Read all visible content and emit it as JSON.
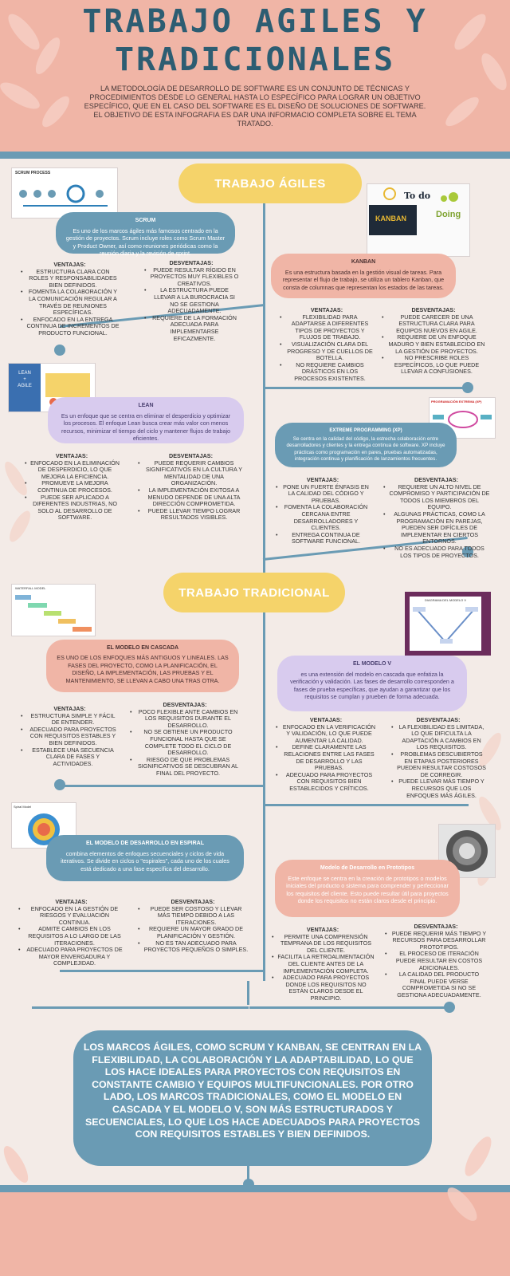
{
  "header": {
    "title_line1": "TRABAJO AGILES Y",
    "title_line2": "TRADICIONALES",
    "intro_p1": "LA METODOLOGÍA DE DESARROLLO DE SOFTWARE ES UN CONJUNTO DE TÉCNICAS Y PROCEDIMIENTOS DESDE LO GENERAL HASTA LO ESPECÍFICO PARA LOGRAR UN OBJETIVO ESPECÍFICO, QUE EN EL CASO DEL SOFTWARE ES EL DISEÑO DE SOLUCIONES DE SOFTWARE.",
    "intro_p2": "EL OBJETIVO DE ESTA INFOGRAFIA ES DAR UNA INFORMACIO COMPLETA SOBRE EL TEMA TRATADO."
  },
  "agiles": {
    "heading": "TRABAJO ÁGILES",
    "scrum": {
      "thumb_label": "SCRUM PROCESS",
      "title": "SCRUM",
      "desc": "Es uno de los marcos ágiles más famosos centrado en la gestión de proyectos. Scrum incluye roles como Scrum Master y Product Owner, así como reuniones periódicas como la reunión diaria y la revisión de sprint.",
      "pros_title": "VENTAJAS:",
      "pros": [
        "ESTRUCTURA CLARA CON ROLES Y RESPONSABILIDADES BIEN DEFINIDOS.",
        "FOMENTA LA COLABORACIÓN Y LA COMUNICACIÓN REGULAR A TRAVÉS DE REUNIONES ESPECÍFICAS.",
        "ENFOCADO EN LA ENTREGA CONTINUA DE INCREMENTOS DE PRODUCTO FUNCIONAL."
      ],
      "cons_title": "DESVENTAJAS:",
      "cons": [
        "PUEDE RESULTAR RÍGIDO EN PROYECTOS MUY FLEXIBLES O CREATIVOS.",
        "LA ESTRUCTURA PUEDE LLEVAR A LA BUROCRACIA SI NO SE GESTIONA ADECUADAMENTE.",
        "REQUIERE DE LA FORMACIÓN ADECUADA PARA IMPLEMENTARSE EFICAZMENTE."
      ]
    },
    "kanban": {
      "thumb_to_do": "To do",
      "thumb_kanban": "KANBAN",
      "thumb_doing": "Doing",
      "title": "KANBAN",
      "desc": "Es una estructura basada en la gestión visual de tareas. Para representar el flujo de trabajo, se utiliza un tablero Kanban, que consta de columnas que representan los estados de las tareas.",
      "pros_title": "VENTAJAS:",
      "pros": [
        "FLEXIBILIDAD PARA ADAPTARSE A DIFERENTES TIPOS DE PROYECTOS Y FLUJOS DE TRABAJO.",
        "VISUALIZACIÓN CLARA DEL PROGRESO Y DE CUELLOS DE BOTELLA.",
        "NO REQUIERE CAMBIOS DRÁSTICOS EN LOS PROCESOS EXISTENTES."
      ],
      "cons_title": "DESVENTAJAS:",
      "cons": [
        "PUEDE CARECER DE UNA ESTRUCTURA CLARA PARA EQUIPOS NUEVOS EN AGILE.",
        "REQUIERE DE UN ENFOQUE MADURO Y BIEN ESTABLECIDO EN LA GESTIÓN DE PROYECTOS.",
        "NO PRESCRIBE ROLES ESPECÍFICOS, LO QUE PUEDE LLEVAR A CONFUSIONES."
      ]
    },
    "lean": {
      "thumb_line1": "LEAN",
      "thumb_line2": "+",
      "thumb_line3": "AGILE",
      "title": "LEAN",
      "desc": "Es un enfoque que se centra en eliminar el desperdicio y optimizar los procesos. El enfoque Lean busca crear más valor con menos recursos, minimizar el tiempo del ciclo y mantener flujos de trabajo eficientes.",
      "pros_title": "VENTAJAS:",
      "pros": [
        "ENFOCADO EN LA ELIMINACIÓN DE DESPERDICIO, LO QUE MEJORA LA EFICIENCIA.",
        "PROMUEVE LA MEJORA CONTINUA DE PROCESOS.",
        "PUEDE SER APLICADO A DIFERENTES INDUSTRIAS, NO SOLO AL DESARROLLO DE SOFTWARE."
      ],
      "cons_title": "DESVENTAJAS:",
      "cons": [
        "PUEDE REQUERIR CAMBIOS SIGNIFICATIVOS EN LA CULTURA Y MENTALIDAD DE UNA ORGANIZACIÓN.",
        "LA IMPLEMENTACIÓN EXITOSA A MENUDO DEPENDE DE UNA ALTA DIRECCIÓN COMPROMETIDA.",
        "PUEDE LLEVAR TIEMPO LOGRAR RESULTADOS VISIBLES."
      ]
    },
    "xp": {
      "thumb_label": "PROGRAMACIÓN EXTREMA (XP)",
      "title": "EXTREME PROGRAMMING (XP)",
      "desc": "Se centra en la calidad del código, la estrecha colaboración entre desarrolladores y clientes y la entrega continua de software. XP incluye prácticas como programación en pares, pruebas automatizadas, integración continua y planificación de lanzamientos frecuentes.",
      "pros_title": "VENTAJAS:",
      "pros": [
        "PONE UN FUERTE ÉNFASIS EN LA CALIDAD DEL CÓDIGO Y PRUEBAS.",
        "FOMENTA LA COLABORACIÓN CERCANA ENTRE DESARROLLADORES Y CLIENTES.",
        "ENTREGA CONTINUA DE SOFTWARE FUNCIONAL."
      ],
      "cons_title": "DESVENTAJAS:",
      "cons": [
        "REQUIERE UN ALTO NIVEL DE COMPROMISO Y PARTICIPACIÓN DE TODOS LOS MIEMBROS DEL EQUIPO.",
        "ALGUNAS PRÁCTICAS, COMO LA PROGRAMACIÓN EN PAREJAS, PUEDEN SER DIFÍCILES DE IMPLEMENTAR EN CIERTOS ENTORNOS.",
        "NO ES ADECUADO PARA TODOS LOS TIPOS DE PROYECTOS."
      ]
    }
  },
  "tradicional": {
    "heading": "TRABAJO  TRADICIONAL",
    "cascada": {
      "thumb_label": "WATERFALL MODEL",
      "title": "EL MODELO EN CASCADA",
      "desc": "ES UNO DE LOS ENFOQUES MÁS ANTIGUOS Y LINEALES. LAS FASES DEL PROYECTO, COMO LA PLANIFICACIÓN, EL DISEÑO, LA IMPLEMENTACIÓN, LAS PRUEBAS Y EL MANTENIMIENTO, SE LLEVAN A CABO UNA TRAS OTRA.",
      "pros_title": "VENTAJAS:",
      "pros": [
        "ESTRUCTURA SIMPLE Y FÁCIL DE ENTENDER.",
        "ADECUADO PARA PROYECTOS CON REQUISITOS ESTABLES Y BIEN DEFINIDOS.",
        "ESTABLECE UNA SECUENCIA CLARA DE FASES Y ACTIVIDADES."
      ],
      "cons_title": "DESVENTAJAS:",
      "cons": [
        "POCO FLEXIBLE ANTE CAMBIOS EN LOS REQUISITOS DURANTE EL DESARROLLO.",
        "NO SE OBTIENE UN PRODUCTO FUNCIONAL HASTA QUE SE COMPLETE TODO EL CICLO DE DESARROLLO.",
        "RIESGO DE QUE PROBLEMAS SIGNIFICATIVOS SE DESCUBRAN AL FINAL DEL PROYECTO."
      ]
    },
    "modelov": {
      "thumb_label": "DIAGRAMA DEL MODELO V",
      "title": "EL MODELO V",
      "desc": "es una extensión del modelo en cascada que enfatiza la verificación y validación. Las fases de desarrollo corresponden a fases de prueba específicas, que ayudan a garantizar que los requisitos se cumplan y prueben de forma adecuada.",
      "pros_title": "VENTAJAS:",
      "pros": [
        "ENFOCADO EN LA VERIFICACIÓN Y VALIDACIÓN, LO QUE PUEDE AUMENTAR LA CALIDAD.",
        "DEFINE CLARAMENTE LAS RELACIONES ENTRE LAS FASES DE DESARROLLO Y LAS PRUEBAS.",
        "ADECUADO PARA PROYECTOS CON REQUISITOS BIEN ESTABLECIDOS Y CRÍTICOS."
      ],
      "cons_title": "DESVENTAJAS:",
      "cons": [
        "LA FLEXIBILIDAD ES LIMITADA, LO QUE DIFICULTA LA ADAPTACIÓN A CAMBIOS EN LOS REQUISITOS.",
        "PROBLEMAS DESCUBIERTOS EN ETAPAS POSTERIORES PUEDEN RESULTAR COSTOSOS DE CORREGIR.",
        "PUEDE LLEVAR MÁS TIEMPO Y RECURSOS QUE LOS ENFOQUES MÁS ÁGILES."
      ]
    },
    "espiral": {
      "thumb_label": "Spiral Model",
      "title": "EL MODELO DE DESARROLLO EN ESPIRAL",
      "desc": "combina elementos de enfoques secuenciales y ciclos de vida iterativos. Se divide en ciclos o \"espirales\", cada uno de los cuales está dedicado a una fase específica del desarrollo.",
      "pros_title": "VENTAJAS:",
      "pros": [
        "ENFOCADO EN LA GESTIÓN DE RIESGOS Y EVALUACIÓN CONTINUA.",
        "ADMITE CAMBIOS EN LOS REQUISITOS A LO LARGO DE LAS ITERACIONES.",
        "ADECUADO PARA PROYECTOS DE MAYOR ENVERGADURA Y COMPLEJIDAD."
      ],
      "cons_title": "DESVENTAJAS:",
      "cons": [
        "PUEDE SER COSTOSO Y LLEVAR MÁS TIEMPO DEBIDO A LAS ITERACIONES.",
        "REQUIERE UN MAYOR GRADO DE PLANIFICACIÓN Y GESTIÓN.",
        "NO ES TAN ADECUADO PARA PROYECTOS PEQUEÑOS O SIMPLES."
      ]
    },
    "prototipos": {
      "title": "Modelo de Desarrollo en Prototipos",
      "desc": "Este enfoque se centra en la creación de prototipos o modelos iniciales del producto o sistema para comprender y perfeccionar los requisitos del cliente. Esto puede resultar útil para proyectos donde los requisitos no están claros desde el principio.",
      "pros_title": "VENTAJAS:",
      "pros": [
        "PERMITE UNA COMPRENSIÓN TEMPRANA DE LOS REQUISITOS DEL CLIENTE.",
        "FACILITA LA RETROALIMENTACIÓN DEL CLIENTE ANTES DE LA IMPLEMENTACIÓN COMPLETA.",
        "ADECUADO PARA PROYECTOS DONDE LOS REQUISITOS NO ESTÁN CLAROS DESDE EL PRINCIPIO."
      ],
      "cons_title": "DESVENTAJAS:",
      "cons": [
        "PUEDE REQUERIR MÁS TIEMPO Y RECURSOS PARA DESARROLLAR PROTOTIPOS.",
        "EL PROCESO DE ITERACIÓN PUEDE RESULTAR EN COSTOS ADICIONALES.",
        "LA CALIDAD DEL PRODUCTO FINAL PUEDE VERSE COMPROMETIDA SI NO SE GESTIONA ADECUADAMENTE."
      ]
    }
  },
  "conclusion": "LOS MARCOS ÁGILES, COMO SCRUM Y KANBAN, SE CENTRAN EN LA FLEXIBILIDAD, LA COLABORACIÓN Y LA ADAPTABILIDAD, LO QUE LOS HACE IDEALES PARA PROYECTOS CON REQUISITOS EN CONSTANTE CAMBIO Y EQUIPOS MULTIFUNCIONALES. POR OTRO LADO, LOS MARCOS TRADICIONALES, COMO EL MODELO EN CASCADA Y EL MODELO V, SON MÁS ESTRUCTURADOS Y SECUENCIALES, LO QUE LOS HACE ADECUADOS PARA PROYECTOS CON REQUISITOS ESTABLES Y BIEN DEFINIDOS.",
  "colors": {
    "teal": "#6a9bb4",
    "peach": "#f0b5a6",
    "yellow": "#f5d36a",
    "lavender": "#d8cbee",
    "title": "#2d5d72"
  }
}
